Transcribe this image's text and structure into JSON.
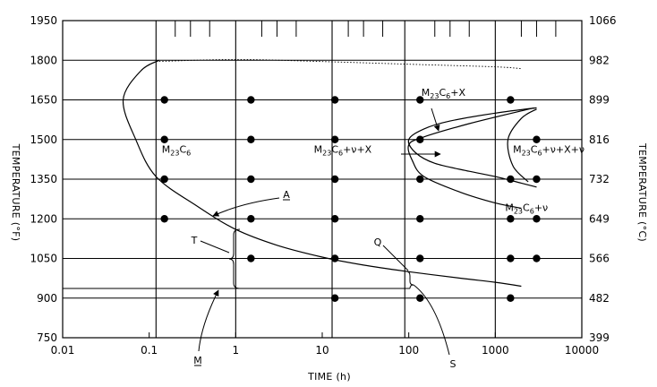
{
  "chart_data": {
    "type": "scatter",
    "title": "",
    "x_scale": "log",
    "xlabel": "TIME (h)",
    "ylabel_left": "TEMPERATURE (°F)",
    "ylabel_right": "TEMPERATURE (°C)",
    "xlim": [
      0.01,
      10000
    ],
    "ylim": [
      750,
      1950
    ],
    "x_ticks": [
      {
        "value": 0.01,
        "label": "0.01"
      },
      {
        "value": 0.1,
        "label": "0.1"
      },
      {
        "value": 1,
        "label": "1"
      },
      {
        "value": 10,
        "label": "10"
      },
      {
        "value": 100,
        "label": "100"
      },
      {
        "value": 1000,
        "label": "1000"
      },
      {
        "value": 10000,
        "label": "10000"
      }
    ],
    "y_ticks_left": [
      {
        "value": 750,
        "label": "750"
      },
      {
        "value": 900,
        "label": "900"
      },
      {
        "value": 1050,
        "label": "1050"
      },
      {
        "value": 1200,
        "label": "1200"
      },
      {
        "value": 1350,
        "label": "1350"
      },
      {
        "value": 1500,
        "label": "1500"
      },
      {
        "value": 1650,
        "label": "1650"
      },
      {
        "value": 1800,
        "label": "1800"
      },
      {
        "value": 1950,
        "label": "1950"
      }
    ],
    "y_ticks_right": [
      {
        "value": 750,
        "label": "399"
      },
      {
        "value": 900,
        "label": "482"
      },
      {
        "value": 1050,
        "label": "566"
      },
      {
        "value": 1200,
        "label": "649"
      },
      {
        "value": 1350,
        "label": "732"
      },
      {
        "value": 1500,
        "label": "816"
      },
      {
        "value": 1650,
        "label": "899"
      },
      {
        "value": 1800,
        "label": "982"
      },
      {
        "value": 1950,
        "label": "1066"
      }
    ],
    "grid": {
      "horizontal_at": [
        900,
        1050,
        1200,
        1350,
        1500,
        1650,
        1800
      ],
      "vertical_at": [
        0.12,
        1,
        13,
        90,
        1000
      ]
    },
    "minor_ticks_top_x": [
      0.2,
      0.3,
      0.5,
      2,
      3,
      5,
      20,
      30,
      50,
      200,
      300,
      500,
      2000,
      3000,
      5000
    ],
    "points": [
      {
        "x": 0.15,
        "y": 1650
      },
      {
        "x": 0.15,
        "y": 1500
      },
      {
        "x": 0.15,
        "y": 1350
      },
      {
        "x": 0.15,
        "y": 1200
      },
      {
        "x": 1.5,
        "y": 1650
      },
      {
        "x": 1.5,
        "y": 1500
      },
      {
        "x": 1.5,
        "y": 1350
      },
      {
        "x": 1.5,
        "y": 1200
      },
      {
        "x": 1.5,
        "y": 1050
      },
      {
        "x": 14,
        "y": 1650
      },
      {
        "x": 14,
        "y": 1500
      },
      {
        "x": 14,
        "y": 1350
      },
      {
        "x": 14,
        "y": 1200
      },
      {
        "x": 14,
        "y": 1050
      },
      {
        "x": 14,
        "y": 900
      },
      {
        "x": 135,
        "y": 1650
      },
      {
        "x": 135,
        "y": 1500
      },
      {
        "x": 135,
        "y": 1350
      },
      {
        "x": 135,
        "y": 1200
      },
      {
        "x": 135,
        "y": 1050
      },
      {
        "x": 135,
        "y": 900
      },
      {
        "x": 1500,
        "y": 1650
      },
      {
        "x": 1500,
        "y": 1350
      },
      {
        "x": 1500,
        "y": 1200
      },
      {
        "x": 1500,
        "y": 1050
      },
      {
        "x": 1500,
        "y": 900
      },
      {
        "x": 3000,
        "y": 1500
      },
      {
        "x": 3000,
        "y": 1350
      },
      {
        "x": 3000,
        "y": 1200
      },
      {
        "x": 3000,
        "y": 1050
      }
    ],
    "curves": {
      "m23c6_nose": [
        [
          0.13,
          1800
        ],
        [
          0.08,
          1760
        ],
        [
          0.05,
          1650
        ],
        [
          0.07,
          1500
        ],
        [
          0.12,
          1360
        ],
        [
          0.35,
          1250
        ],
        [
          1,
          1160
        ],
        [
          3,
          1100
        ],
        [
          10,
          1055
        ],
        [
          30,
          1025
        ],
        [
          100,
          1000
        ],
        [
          400,
          975
        ],
        [
          1000,
          960
        ],
        [
          2000,
          945
        ]
      ],
      "dashed_top": [
        [
          0.12,
          1795
        ],
        [
          1,
          1803
        ],
        [
          10,
          1795
        ],
        [
          100,
          1785
        ],
        [
          1000,
          1775
        ],
        [
          2000,
          1768
        ]
      ],
      "nu_x_outer": [
        [
          3000,
          1620
        ],
        [
          1000,
          1600
        ],
        [
          300,
          1570
        ],
        [
          150,
          1540
        ],
        [
          100,
          1500
        ],
        [
          120,
          1450
        ],
        [
          200,
          1410
        ],
        [
          500,
          1380
        ],
        [
          1000,
          1360
        ],
        [
          2000,
          1335
        ],
        [
          3000,
          1320
        ]
      ],
      "nu_x_loop": [
        [
          2800,
          1620
        ],
        [
          500,
          1560
        ],
        [
          150,
          1510
        ],
        [
          100,
          1480
        ],
        [
          110,
          1420
        ],
        [
          150,
          1360
        ],
        [
          400,
          1300
        ],
        [
          1000,
          1260
        ],
        [
          2000,
          1240
        ]
      ],
      "nu_x_nu_nose": [
        [
          3000,
          1615
        ],
        [
          2000,
          1580
        ],
        [
          1400,
          1500
        ],
        [
          1600,
          1400
        ],
        [
          2400,
          1340
        ]
      ]
    },
    "region_labels": [
      {
        "id": "m23c6",
        "base": "M",
        "sub": "23",
        "mid": "C",
        "sub2": "6",
        "tail": "",
        "x": 0.14,
        "y": 1450
      },
      {
        "id": "m23c6-nu-x",
        "base": "M",
        "sub": "23",
        "mid": "C",
        "sub2": "6",
        "tail": "+ν+X",
        "x": 8,
        "y": 1450
      },
      {
        "id": "m23c6-x",
        "base": "M",
        "sub": "23",
        "mid": "C",
        "sub2": "6",
        "tail": "+X",
        "x": 140,
        "y": 1665
      },
      {
        "id": "m23c6-nu-x-nu",
        "base": "M",
        "sub": "23",
        "mid": "C",
        "sub2": "6",
        "tail": "+ν+X+ν",
        "x": 1600,
        "y": 1450
      },
      {
        "id": "m23c6-nu",
        "base": "M",
        "sub": "23",
        "mid": "C",
        "sub2": "6",
        "tail": "+ν",
        "x": 1300,
        "y": 1230
      }
    ],
    "annotations": [
      {
        "label": "A",
        "underlined": true
      },
      {
        "label": "T",
        "underlined": false
      },
      {
        "label": "M",
        "underlined": true
      },
      {
        "label": "Q",
        "underlined": false
      },
      {
        "label": "S",
        "underlined": false
      }
    ]
  }
}
